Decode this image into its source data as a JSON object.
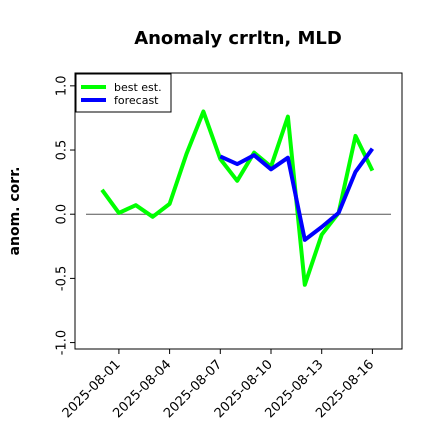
{
  "chart_data": {
    "type": "line",
    "title": "Anomaly crrltn, MLD",
    "xlabel": "",
    "ylabel": "anom. corr.",
    "x": [
      "2025-07-31",
      "2025-08-01",
      "2025-08-02",
      "2025-08-03",
      "2025-08-04",
      "2025-08-05",
      "2025-08-06",
      "2025-08-07",
      "2025-08-08",
      "2025-08-09",
      "2025-08-10",
      "2025-08-11",
      "2025-08-12",
      "2025-08-13",
      "2025-08-14",
      "2025-08-15",
      "2025-08-16"
    ],
    "x_tick_labels": [
      "2025-08-01",
      "2025-08-04",
      "2025-08-07",
      "2025-08-10",
      "2025-08-13",
      "2025-08-16"
    ],
    "x_tick_highlight": "2025-08-07",
    "x_tick_highlight_color": "#228b22",
    "ylim": [
      -1.05,
      1.1
    ],
    "y_ticks": [
      "-1.0",
      "-0.5",
      "0.0",
      "0.5",
      "1.0"
    ],
    "y_tick_values": [
      -1.0,
      -0.5,
      0.0,
      0.5,
      1.0
    ],
    "zero_line": true,
    "grid": false,
    "legend_position": "top-left",
    "series": [
      {
        "name": "best est.",
        "color": "#00ff00",
        "values": [
          0.19,
          0.01,
          0.07,
          -0.02,
          0.08,
          0.47,
          0.8,
          0.43,
          0.26,
          0.48,
          0.37,
          0.76,
          -0.55,
          -0.16,
          0.01,
          0.61,
          0.34
        ]
      },
      {
        "name": "forecast",
        "color": "#0000ff",
        "values": [
          null,
          null,
          null,
          null,
          null,
          null,
          null,
          0.45,
          0.39,
          0.46,
          0.35,
          0.44,
          -0.2,
          -0.1,
          0.01,
          0.33,
          0.51
        ]
      }
    ]
  }
}
